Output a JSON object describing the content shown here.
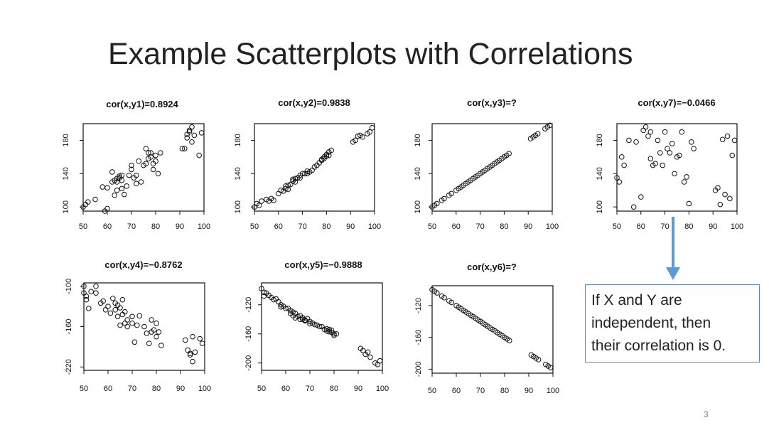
{
  "slide": {
    "title": "Example Scatterplots with Correlations",
    "page_number": "3",
    "callout_lines": [
      "If X and Y are",
      "independent, then",
      "their correlation is 0."
    ],
    "arrow_color": "#5b9bd5",
    "callout_border_color": "#5a86c7"
  },
  "chart_data": [
    {
      "type": "scatter",
      "title": "cor(x,y1)=0.8924",
      "xlim": [
        50,
        100
      ],
      "ylim": [
        95,
        200
      ],
      "xticks": [
        50,
        60,
        70,
        80,
        90,
        100
      ],
      "yticks": [
        100,
        140,
        180
      ],
      "x": [
        50,
        51,
        52,
        55,
        58,
        59,
        60,
        60,
        62,
        62,
        63,
        63,
        64,
        64,
        64,
        65,
        65,
        66,
        66,
        66,
        67,
        68,
        69,
        70,
        70,
        71,
        72,
        72,
        73,
        74,
        75,
        76,
        76,
        77,
        77,
        78,
        78,
        79,
        79,
        80,
        80,
        81,
        82,
        91,
        92,
        93,
        93,
        94,
        94,
        95,
        95,
        96,
        98,
        99
      ],
      "y": [
        100,
        103,
        106,
        109,
        124,
        95,
        123,
        98,
        142,
        130,
        132,
        114,
        120,
        130,
        134,
        135,
        137,
        138,
        132,
        122,
        115,
        125,
        138,
        145,
        150,
        135,
        138,
        128,
        155,
        130,
        150,
        152,
        170,
        158,
        165,
        165,
        160,
        152,
        145,
        162,
        155,
        140,
        165,
        170,
        170,
        183,
        187,
        190,
        192,
        178,
        196,
        186,
        162,
        189
      ]
    },
    {
      "type": "scatter",
      "title": "cor(x,y2)=0.9838",
      "xlim": [
        50,
        100
      ],
      "ylim": [
        95,
        200
      ],
      "xticks": [
        50,
        60,
        70,
        80,
        90,
        100
      ],
      "yticks": [
        100,
        140,
        180
      ],
      "x": [
        50,
        51,
        52,
        53,
        55,
        56,
        57,
        58,
        60,
        61,
        62,
        63,
        63,
        64,
        64,
        65,
        66,
        66,
        67,
        67,
        68,
        69,
        69,
        70,
        71,
        72,
        72,
        73,
        74,
        75,
        76,
        77,
        78,
        78,
        79,
        79,
        80,
        80,
        81,
        81,
        82,
        91,
        92,
        93,
        94,
        95,
        97,
        98,
        99
      ],
      "y": [
        100,
        104,
        102,
        107,
        109,
        107,
        110,
        108,
        116,
        120,
        119,
        122,
        125,
        121,
        126,
        127,
        131,
        133,
        130,
        134,
        135,
        135,
        138,
        140,
        140,
        140,
        143,
        142,
        144,
        148,
        150,
        153,
        156,
        157,
        160,
        158,
        161,
        163,
        162,
        166,
        168,
        178,
        180,
        185,
        186,
        184,
        188,
        190,
        195
      ]
    },
    {
      "type": "scatter",
      "title": "cor(x,y3)=?",
      "xlim": [
        50,
        100
      ],
      "ylim": [
        95,
        200
      ],
      "xticks": [
        50,
        60,
        70,
        80,
        90,
        100
      ],
      "yticks": [
        100,
        140,
        180
      ],
      "x": [
        50,
        51,
        52,
        54,
        55,
        57,
        58,
        60,
        61,
        62,
        63,
        64,
        65,
        66,
        67,
        68,
        69,
        70,
        71,
        72,
        73,
        74,
        75,
        76,
        77,
        78,
        79,
        80,
        81,
        82,
        91,
        92,
        93,
        94,
        97,
        98,
        99
      ],
      "y": [
        100,
        102,
        104,
        108,
        110,
        114,
        116,
        120,
        122,
        124,
        126,
        128,
        130,
        132,
        134,
        136,
        138,
        140,
        142,
        144,
        146,
        148,
        150,
        152,
        154,
        156,
        158,
        160,
        162,
        164,
        182,
        184,
        186,
        188,
        194,
        196,
        198
      ]
    },
    {
      "type": "scatter",
      "title": "cor(x,y7)=−0.0466",
      "xlim": [
        50,
        100
      ],
      "ylim": [
        95,
        200
      ],
      "xticks": [
        50,
        60,
        70,
        80,
        90,
        100
      ],
      "yticks": [
        100,
        140,
        180
      ],
      "x": [
        50,
        51,
        52,
        53,
        55,
        57,
        58,
        60,
        61,
        62,
        63,
        64,
        64,
        65,
        66,
        67,
        68,
        69,
        70,
        71,
        72,
        73,
        74,
        75,
        76,
        77,
        78,
        79,
        80,
        81,
        82,
        91,
        92,
        93,
        94,
        95,
        96,
        97,
        98,
        99
      ],
      "y": [
        135,
        130,
        160,
        150,
        180,
        100,
        178,
        112,
        192,
        196,
        185,
        158,
        190,
        150,
        152,
        180,
        165,
        150,
        190,
        170,
        165,
        176,
        140,
        160,
        162,
        190,
        130,
        136,
        104,
        178,
        170,
        120,
        123,
        103,
        181,
        115,
        185,
        110,
        162,
        180
      ]
    },
    {
      "type": "scatter",
      "title": "cor(x,y4)=−0.8762",
      "xlim": [
        50,
        100
      ],
      "ylim": [
        -225,
        -95
      ],
      "xticks": [
        50,
        60,
        70,
        80,
        90,
        100
      ],
      "yticks": [
        -100,
        -160,
        -220
      ],
      "x": [
        50,
        50,
        51,
        51,
        52,
        53,
        55,
        55,
        57,
        58,
        59,
        60,
        61,
        62,
        63,
        63,
        64,
        64,
        65,
        65,
        66,
        66,
        67,
        67,
        68,
        68,
        70,
        70,
        71,
        72,
        73,
        75,
        76,
        77,
        78,
        78,
        79,
        80,
        80,
        81,
        82,
        92,
        93,
        94,
        94,
        95,
        95,
        96,
        98,
        99
      ],
      "y": [
        -110,
        -100,
        -120,
        -115,
        -133,
        -108,
        -110,
        -100,
        -125,
        -122,
        -135,
        -130,
        -140,
        -118,
        -125,
        -135,
        -145,
        -128,
        -132,
        -158,
        -120,
        -142,
        -138,
        -155,
        -150,
        -160,
        -145,
        -155,
        -183,
        -158,
        -144,
        -160,
        -170,
        -185,
        -150,
        -168,
        -165,
        -155,
        -175,
        -168,
        -188,
        -180,
        -195,
        -200,
        -202,
        -175,
        -212,
        -198,
        -178,
        -185
      ]
    },
    {
      "type": "scatter",
      "title": "cor(x,y5)=−0.9888",
      "xlim": [
        50,
        100
      ],
      "ylim": [
        -210,
        -90
      ],
      "xticks": [
        50,
        60,
        70,
        80,
        90,
        100
      ],
      "yticks": [
        -120,
        -160,
        -200
      ],
      "x": [
        50,
        51,
        51,
        52,
        53,
        54,
        55,
        56,
        57,
        58,
        58,
        59,
        60,
        61,
        62,
        62,
        63,
        63,
        64,
        64,
        65,
        66,
        66,
        67,
        67,
        68,
        68,
        69,
        70,
        70,
        71,
        72,
        73,
        74,
        75,
        76,
        77,
        77,
        78,
        78,
        79,
        79,
        80,
        80,
        81,
        91,
        92,
        93,
        94,
        95,
        97,
        98,
        99
      ],
      "y": [
        -98,
        -103,
        -108,
        -104,
        -107,
        -110,
        -113,
        -112,
        -116,
        -120,
        -123,
        -122,
        -125,
        -125,
        -128,
        -132,
        -130,
        -135,
        -132,
        -138,
        -136,
        -140,
        -135,
        -140,
        -138,
        -142,
        -141,
        -139,
        -143,
        -146,
        -145,
        -147,
        -148,
        -150,
        -150,
        -154,
        -153,
        -156,
        -157,
        -154,
        -158,
        -155,
        -160,
        -162,
        -160,
        -180,
        -183,
        -188,
        -185,
        -192,
        -200,
        -202,
        -197
      ]
    },
    {
      "type": "scatter",
      "title": "cor(x,y6)=?",
      "xlim": [
        50,
        100
      ],
      "ylim": [
        -205,
        -95
      ],
      "xticks": [
        50,
        60,
        70,
        80,
        90,
        100
      ],
      "yticks": [
        -120,
        -160,
        -200
      ],
      "x": [
        50,
        51,
        52,
        54,
        55,
        57,
        58,
        60,
        61,
        62,
        63,
        64,
        65,
        66,
        67,
        68,
        69,
        70,
        71,
        72,
        73,
        74,
        75,
        76,
        77,
        78,
        79,
        80,
        81,
        82,
        91,
        92,
        93,
        94,
        97,
        98,
        99
      ],
      "y": [
        -100,
        -102,
        -104,
        -108,
        -110,
        -114,
        -116,
        -120,
        -122,
        -124,
        -126,
        -128,
        -130,
        -132,
        -134,
        -136,
        -138,
        -140,
        -142,
        -144,
        -146,
        -148,
        -150,
        -152,
        -154,
        -156,
        -158,
        -160,
        -162,
        -164,
        -182,
        -184,
        -186,
        -188,
        -194,
        -196,
        -198
      ]
    }
  ]
}
